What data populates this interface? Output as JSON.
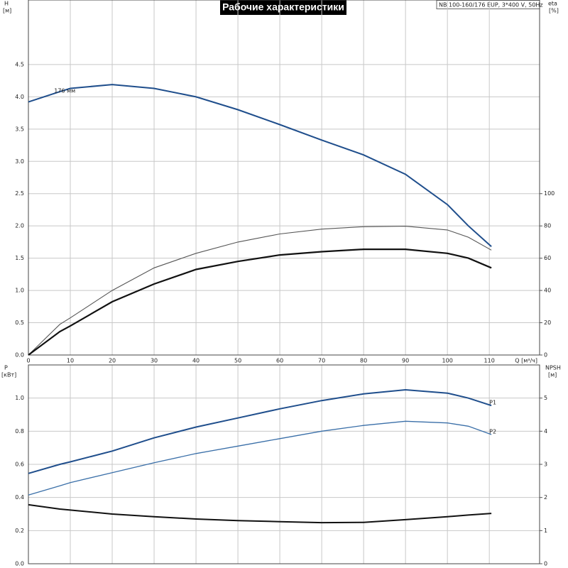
{
  "chart_data": [
    {
      "type": "line",
      "title": "Рабочие характеристики",
      "subtitle": "NB 100-160/176 EUP, 3*400 V, 50Hz",
      "xlabel": "Q [м³/ч]",
      "ylabel": "H",
      "ylabel_unit": "[м]",
      "y2label": "eta",
      "y2label_unit": "[%]",
      "xlim": [
        0,
        122
      ],
      "xticks": [
        0,
        10,
        20,
        30,
        40,
        50,
        60,
        70,
        80,
        90,
        100,
        110
      ],
      "ylim": [
        0,
        5.5
      ],
      "yticks": [
        {
          "value": 0,
          "label": "0.0"
        },
        0.5,
        {
          "value": 1,
          "label": "1.0"
        },
        1.5,
        {
          "value": 2,
          "label": "2.0"
        },
        2.5,
        {
          "value": 3,
          "label": "3.0"
        },
        3.5,
        {
          "value": 4,
          "label": "4.0"
        },
        4.5
      ],
      "y2lim": [
        0,
        220
      ],
      "y2ticks": [
        0,
        20,
        40,
        60,
        80,
        100
      ],
      "grid": true,
      "x": [
        0,
        7.5,
        10,
        20,
        30,
        40,
        50,
        60,
        70,
        80,
        90,
        100,
        105,
        110.5
      ],
      "series": [
        {
          "name": "176 мм",
          "color": "#1f4e8c",
          "values": [
            3.92,
            4.08,
            4.13,
            4.19,
            4.13,
            4.0,
            3.8,
            3.57,
            3.33,
            3.1,
            2.8,
            2.33,
            2.0,
            1.68
          ]
        },
        {
          "color": "#555555",
          "axis": "y2",
          "values": [
            0,
            19,
            23,
            40,
            54,
            63,
            70,
            75,
            78,
            79.5,
            79.8,
            77.5,
            73,
            65
          ]
        },
        {
          "color": "#111111",
          "axis": "y2",
          "values": [
            0,
            14.5,
            18,
            33,
            44,
            53,
            58,
            62,
            64,
            65.5,
            65.5,
            63,
            60,
            54
          ]
        }
      ]
    },
    {
      "type": "line",
      "ylabel": "P",
      "ylabel_unit": "[кВт]",
      "y2label": "NPSH",
      "y2label_unit": "[м]",
      "xlim": [
        0,
        122
      ],
      "ylim": [
        0,
        1.2
      ],
      "yticks": [
        {
          "value": 0,
          "label": "0.0"
        },
        0.2,
        0.4,
        0.6,
        0.8,
        {
          "value": 1,
          "label": "1.0"
        }
      ],
      "y2lim": [
        0,
        6
      ],
      "y2ticks": [
        0,
        1,
        2,
        3,
        4,
        5
      ],
      "grid": true,
      "x": [
        0,
        7.5,
        10,
        20,
        30,
        40,
        50,
        60,
        70,
        80,
        90,
        100,
        105,
        110.5
      ],
      "series": [
        {
          "name": "P1",
          "color": "#1f4e8c",
          "values": [
            0.545,
            0.6,
            0.615,
            0.68,
            0.76,
            0.825,
            0.88,
            0.935,
            0.985,
            1.025,
            1.05,
            1.03,
            1.0,
            0.955
          ]
        },
        {
          "name": "P2",
          "color": "#3a6fa8",
          "values": [
            0.415,
            0.47,
            0.49,
            0.55,
            0.61,
            0.665,
            0.71,
            0.755,
            0.8,
            0.835,
            0.86,
            0.85,
            0.83,
            0.78
          ]
        },
        {
          "color": "#111111",
          "axis": "y2",
          "values": [
            1.78,
            1.65,
            1.62,
            1.5,
            1.42,
            1.35,
            1.3,
            1.27,
            1.24,
            1.25,
            1.33,
            1.42,
            1.47,
            1.52
          ]
        }
      ]
    }
  ]
}
